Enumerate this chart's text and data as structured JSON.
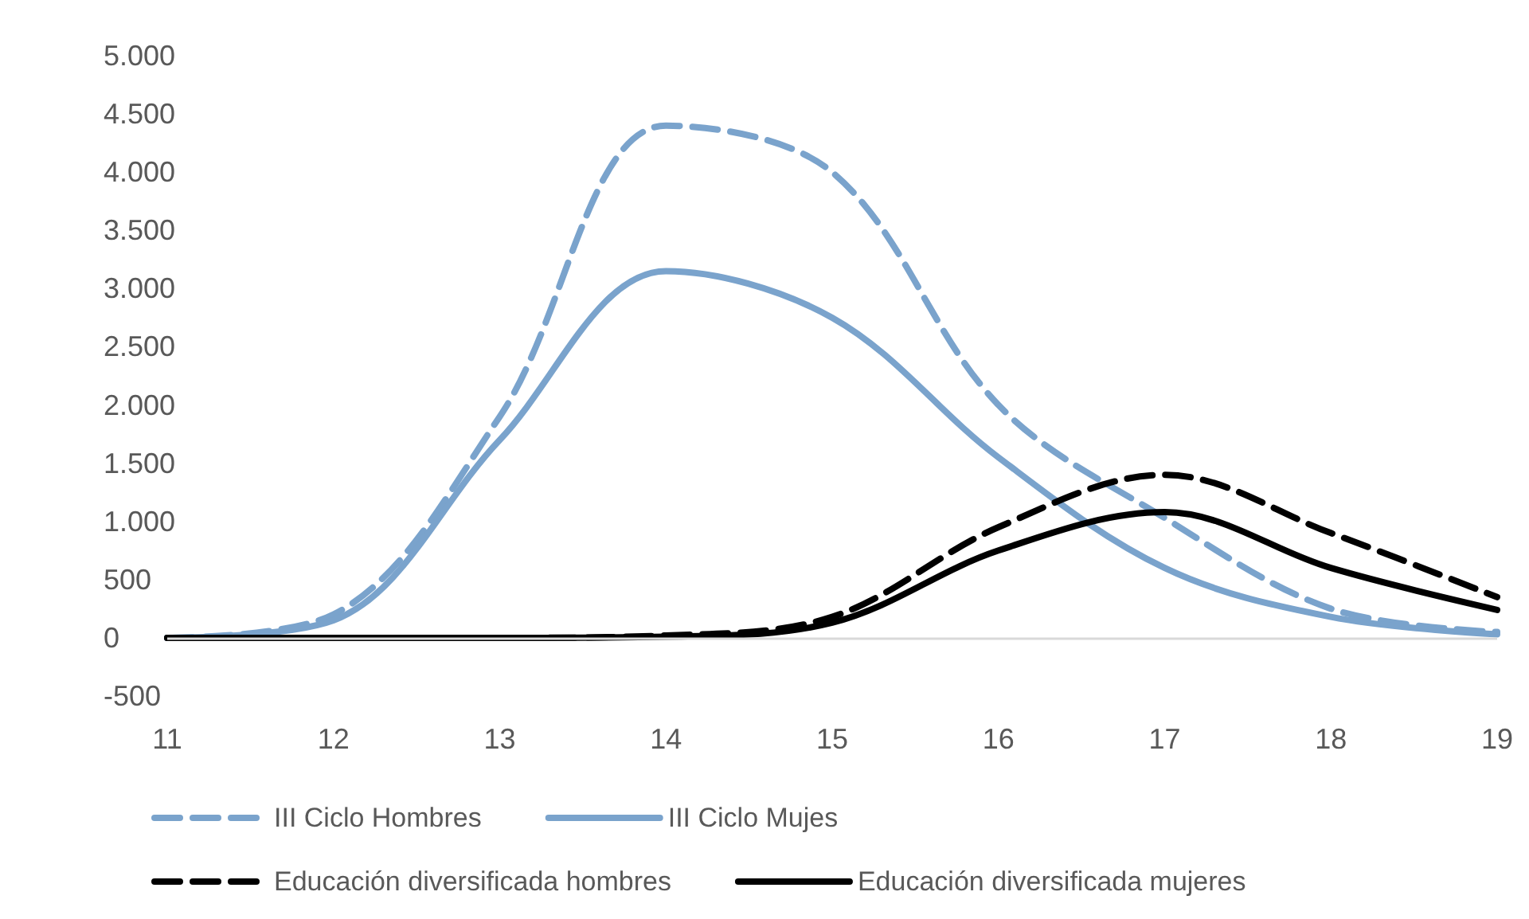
{
  "chart_data": {
    "type": "line",
    "x": [
      11,
      12,
      13,
      14,
      15,
      16,
      17,
      18,
      19
    ],
    "series": [
      {
        "name": "III Ciclo Hombres",
        "color": "#7aa3cc",
        "line_style": "dashed",
        "values": [
          0,
          200,
          1900,
          4400,
          4000,
          2000,
          1030,
          250,
          50
        ]
      },
      {
        "name": "III Ciclo Mujes",
        "color": "#7aa3cc",
        "line_style": "solid",
        "values": [
          0,
          150,
          1700,
          3150,
          2750,
          1550,
          600,
          180,
          30
        ]
      },
      {
        "name": "Educación diversificada hombres",
        "color": "#000000",
        "line_style": "dashed",
        "values": [
          0,
          0,
          0,
          20,
          180,
          950,
          1400,
          900,
          350
        ]
      },
      {
        "name": "Educación diversificada mujeres",
        "color": "#000000",
        "line_style": "solid",
        "values": [
          0,
          0,
          0,
          10,
          130,
          750,
          1080,
          600,
          240
        ]
      }
    ],
    "xlim": [
      11,
      19
    ],
    "xticks": [
      11,
      12,
      13,
      14,
      15,
      16,
      17,
      18,
      19
    ],
    "ylim": [
      -500,
      5000
    ],
    "yticks": [
      {
        "value": -500,
        "label": "-500"
      },
      0,
      500,
      {
        "value": 1000,
        "label": "1.000"
      },
      {
        "value": 1500,
        "label": "1.500"
      },
      {
        "value": 2000,
        "label": "2.000"
      },
      {
        "value": 2500,
        "label": "2.500"
      },
      {
        "value": 3000,
        "label": "3.000"
      },
      {
        "value": 3500,
        "label": "3.500"
      },
      {
        "value": 4000,
        "label": "4.000"
      },
      {
        "value": 4500,
        "label": "4.500"
      },
      {
        "value": 5000,
        "label": "5.000"
      }
    ],
    "ref_lines": [
      {
        "axis": "y",
        "value": 0,
        "color": "#d9d9d9"
      }
    ],
    "grid": false,
    "legend": "bottom",
    "marker": "none"
  }
}
